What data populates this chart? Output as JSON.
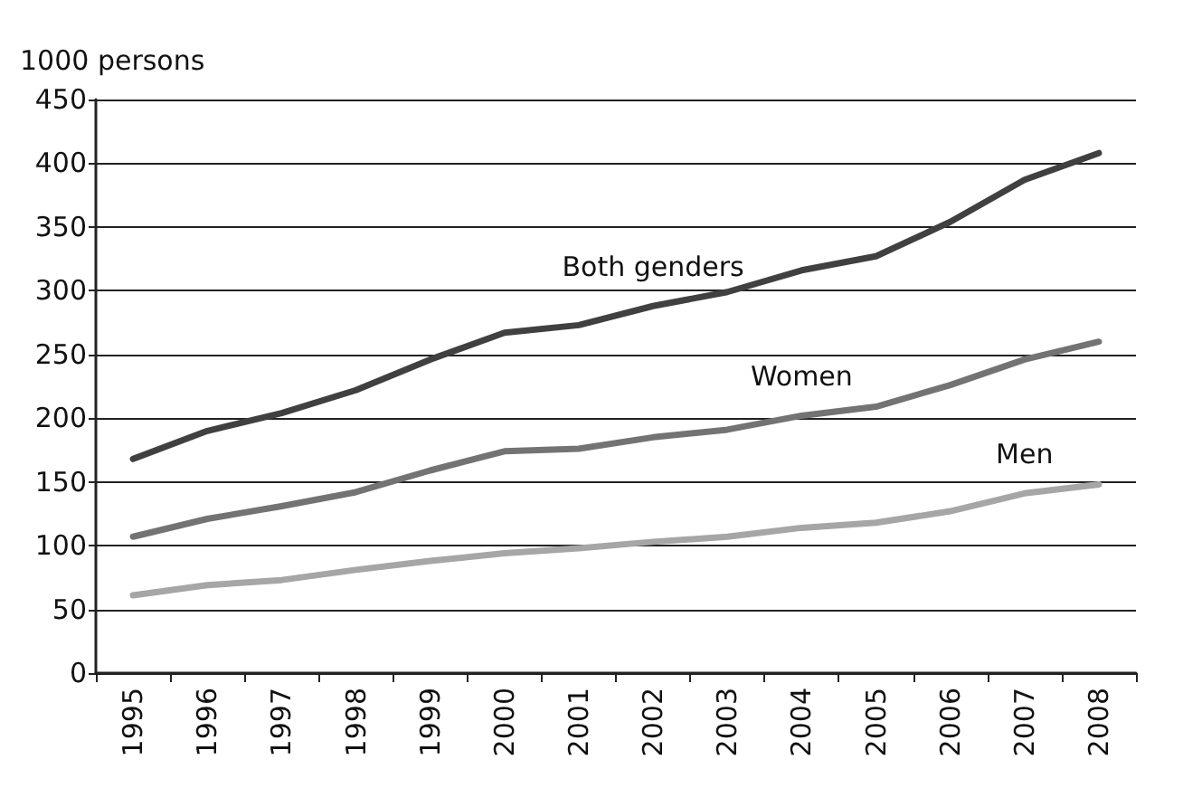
{
  "chart_data": {
    "type": "line",
    "ylabel": "1000 persons",
    "categories": [
      "1995",
      "1996",
      "1997",
      "1998",
      "1999",
      "2000",
      "2001",
      "2002",
      "2003",
      "2004",
      "2005",
      "2006",
      "2007",
      "2008"
    ],
    "series": [
      {
        "name": "Both genders",
        "color": "#404040",
        "values": [
          168,
          190,
          204,
          222,
          246,
          267,
          273,
          288,
          299,
          316,
          327,
          354,
          387,
          408
        ]
      },
      {
        "name": "Women",
        "color": "#737373",
        "values": [
          107,
          121,
          131,
          142,
          159,
          174,
          176,
          185,
          191,
          202,
          209,
          226,
          246,
          260
        ]
      },
      {
        "name": "Men",
        "color": "#a6a6a6",
        "values": [
          61,
          69,
          73,
          81,
          88,
          94,
          98,
          103,
          107,
          114,
          118,
          127,
          141,
          148
        ]
      }
    ],
    "ylim": [
      0,
      450
    ],
    "yticks": [
      0,
      50,
      100,
      150,
      200,
      250,
      300,
      350,
      400,
      450
    ],
    "grid": "y",
    "marker": "none",
    "line_style": "solid"
  }
}
